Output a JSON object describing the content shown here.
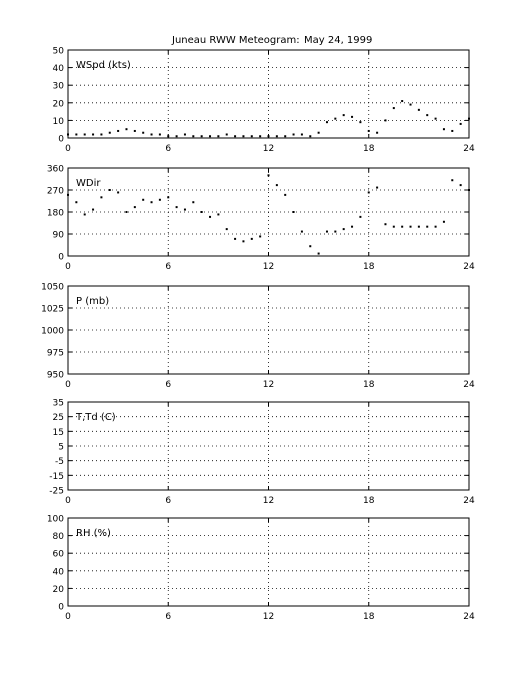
{
  "title": {
    "left": "Juneau RWW Meteogram:",
    "right": "May 24, 1999"
  },
  "xaxis": {
    "ticks": [
      0,
      6,
      12,
      18,
      24
    ],
    "range": [
      0,
      24
    ]
  },
  "colors": {
    "axes": "#000000",
    "points": "#000000",
    "background": "#ffffff"
  },
  "chart_data": [
    {
      "type": "scatter",
      "label": "WSpd (kts)",
      "ylim": [
        0,
        50
      ],
      "yticks": [
        0,
        10,
        20,
        30,
        40,
        50
      ],
      "grid": true,
      "series": [
        {
          "x": [
            0,
            0.5,
            1,
            1.5,
            2,
            2.5,
            3,
            3.5,
            4,
            4.5,
            5,
            5.5,
            6,
            6.5,
            7,
            7.5,
            8,
            8.5,
            9,
            9.5,
            10,
            10.5,
            11,
            11.5,
            12,
            12.5,
            13,
            13.5,
            14,
            14.5,
            15,
            15.5,
            16,
            16.5,
            17,
            17.5,
            18,
            18.5,
            19,
            19.5,
            20,
            20.5,
            21,
            21.5,
            22,
            22.5,
            23,
            23.5,
            24
          ],
          "y": [
            2,
            2,
            2,
            2,
            2,
            3,
            4,
            5,
            4,
            3,
            2,
            2,
            1,
            1,
            2,
            1,
            1,
            1,
            1,
            2,
            1,
            1,
            1,
            1,
            1,
            1,
            1,
            2,
            2,
            1,
            3,
            9,
            11,
            13,
            12,
            9,
            4,
            3,
            10,
            17,
            21,
            19,
            16,
            13,
            11,
            5,
            4,
            8,
            11
          ]
        }
      ]
    },
    {
      "type": "scatter",
      "label": "WDir",
      "ylim": [
        0,
        360
      ],
      "yticks": [
        0,
        90,
        180,
        270,
        360
      ],
      "grid": true,
      "series": [
        {
          "x": [
            0,
            0.5,
            1,
            1.5,
            2,
            2.5,
            3,
            3.5,
            4,
            4.5,
            5,
            5.5,
            6,
            6.5,
            7,
            7.5,
            8,
            8.5,
            9,
            9.5,
            10,
            10.5,
            11,
            11.5,
            12,
            12.5,
            13,
            13.5,
            14,
            14.5,
            15,
            15.5,
            16,
            16.5,
            17,
            17.5,
            18,
            18.5,
            19,
            19.5,
            20,
            20.5,
            21,
            21.5,
            22,
            22.5,
            23,
            23.5,
            24
          ],
          "y": [
            250,
            220,
            170,
            190,
            240,
            270,
            260,
            180,
            200,
            230,
            220,
            230,
            240,
            200,
            190,
            220,
            180,
            160,
            170,
            110,
            70,
            60,
            70,
            80,
            330,
            290,
            250,
            180,
            100,
            40,
            10,
            100,
            100,
            110,
            120,
            160,
            260,
            280,
            130,
            120,
            120,
            120,
            120,
            120,
            120,
            140,
            310,
            290,
            270
          ]
        }
      ]
    },
    {
      "type": "scatter",
      "label": "P (mb)",
      "ylim": [
        950,
        1050
      ],
      "yticks": [
        950,
        975,
        1000,
        1025,
        1050
      ],
      "grid": true,
      "series": []
    },
    {
      "type": "scatter",
      "label": "T,Td (C)",
      "ylim": [
        -25,
        35
      ],
      "yticks": [
        -25,
        -15,
        -5,
        5,
        15,
        25,
        35
      ],
      "grid": true,
      "series": []
    },
    {
      "type": "scatter",
      "label": "RH (%)",
      "ylim": [
        0,
        100
      ],
      "yticks": [
        0,
        20,
        40,
        60,
        80,
        100
      ],
      "grid": true,
      "series": []
    }
  ]
}
